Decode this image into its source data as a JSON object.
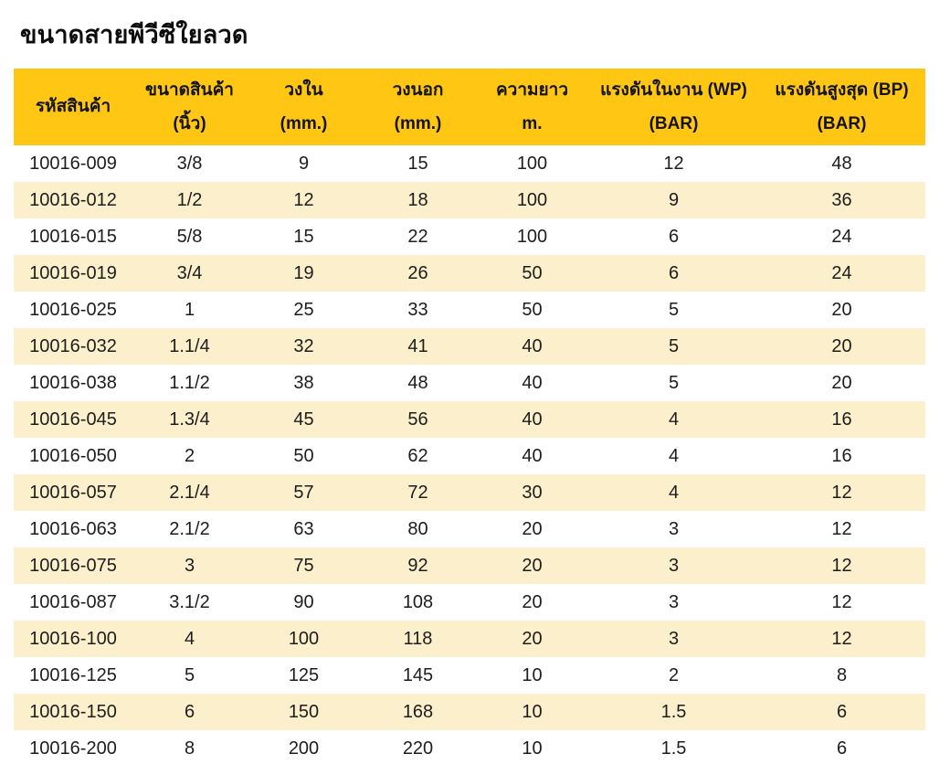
{
  "title": "ขนาดสายพีวีซีใยลวด",
  "colors": {
    "header_background": "#FFC713",
    "stripe_background": "#FCEFCB",
    "text": "#1d1d1d"
  },
  "header": {
    "cells": [
      {
        "line1": "รหัสสินค้า",
        "line2": ""
      },
      {
        "line1": "ขนาดสินค้า",
        "line2": "(นิ้ว)"
      },
      {
        "line1": "วงใน",
        "line2": "(mm.)"
      },
      {
        "line1": "วงนอก",
        "line2": "(mm.)"
      },
      {
        "line1": "ความยาว",
        "line2": "m."
      },
      {
        "line1": "แรงดันในงาน (WP)",
        "line2": "(BAR)"
      },
      {
        "line1": "แรงดันสูงสุด (BP)",
        "line2": "(BAR)"
      }
    ]
  },
  "chart_data": {
    "type": "table",
    "title": "ขนาดสายพีวีซีใยลวด",
    "columns": [
      "รหัสสินค้า",
      "ขนาดสินค้า (นิ้ว)",
      "วงใน (mm.)",
      "วงนอก (mm.)",
      "ความยาว m.",
      "แรงดันในงาน (WP) (BAR)",
      "แรงดันสูงสุด (BP) (BAR)"
    ],
    "rows": [
      [
        "10016-009",
        "3/8",
        9,
        15,
        100,
        12,
        48
      ],
      [
        "10016-012",
        "1/2",
        12,
        18,
        100,
        9,
        36
      ],
      [
        "10016-015",
        "5/8",
        15,
        22,
        100,
        6,
        24
      ],
      [
        "10016-019",
        "3/4",
        19,
        26,
        50,
        6,
        24
      ],
      [
        "10016-025",
        "1",
        25,
        33,
        50,
        5,
        20
      ],
      [
        "10016-032",
        "1.1/4",
        32,
        41,
        40,
        5,
        20
      ],
      [
        "10016-038",
        "1.1/2",
        38,
        48,
        40,
        5,
        20
      ],
      [
        "10016-045",
        "1.3/4",
        45,
        56,
        40,
        4,
        16
      ],
      [
        "10016-050",
        "2",
        50,
        62,
        40,
        4,
        16
      ],
      [
        "10016-057",
        "2.1/4",
        57,
        72,
        30,
        4,
        12
      ],
      [
        "10016-063",
        "2.1/2",
        63,
        80,
        20,
        3,
        12
      ],
      [
        "10016-075",
        "3",
        75,
        92,
        20,
        3,
        12
      ],
      [
        "10016-087",
        "3.1/2",
        90,
        108,
        20,
        3,
        12
      ],
      [
        "10016-100",
        "4",
        100,
        118,
        20,
        3,
        12
      ],
      [
        "10016-125",
        "5",
        125,
        145,
        10,
        2,
        8
      ],
      [
        "10016-150",
        "6",
        150,
        168,
        10,
        1.5,
        6
      ],
      [
        "10016-200",
        "8",
        200,
        220,
        10,
        1.5,
        6
      ]
    ]
  }
}
